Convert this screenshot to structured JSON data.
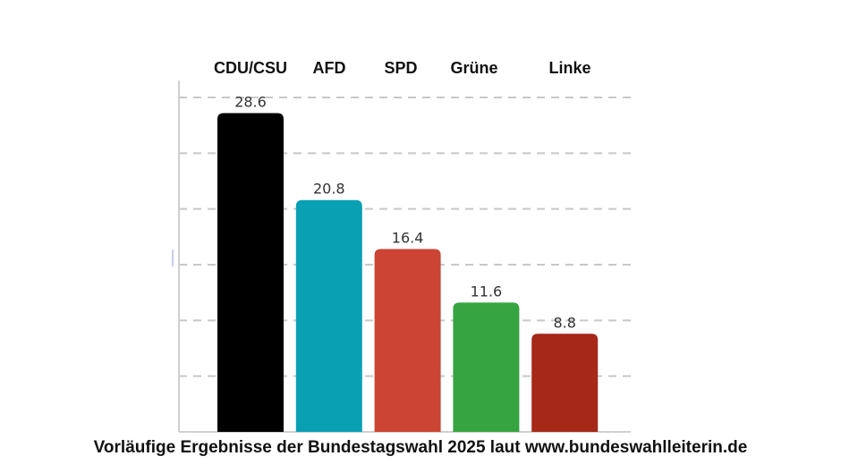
{
  "chart_data": {
    "type": "bar",
    "title": "",
    "categories": [
      "CDU/CSU",
      "AFD",
      "SPD",
      "Grüne",
      "Linke"
    ],
    "values": [
      28.6,
      20.8,
      16.4,
      11.6,
      8.8
    ],
    "value_labels": [
      "28.6",
      "20.8",
      "16.4",
      "11.6",
      "8.8"
    ],
    "colors": [
      "#000000",
      "#0aa0b4",
      "#cc4433",
      "#36a440",
      "#a52818"
    ],
    "xlabel": "",
    "ylabel": "",
    "ylim": [
      0,
      30
    ],
    "y_gridlines": [
      5,
      10,
      15,
      20,
      25,
      30
    ],
    "grid": true,
    "caption": "Vorläufige Ergebnisse der Bundestagswahl 2025 laut www.bundeswahlleiterin.de"
  }
}
